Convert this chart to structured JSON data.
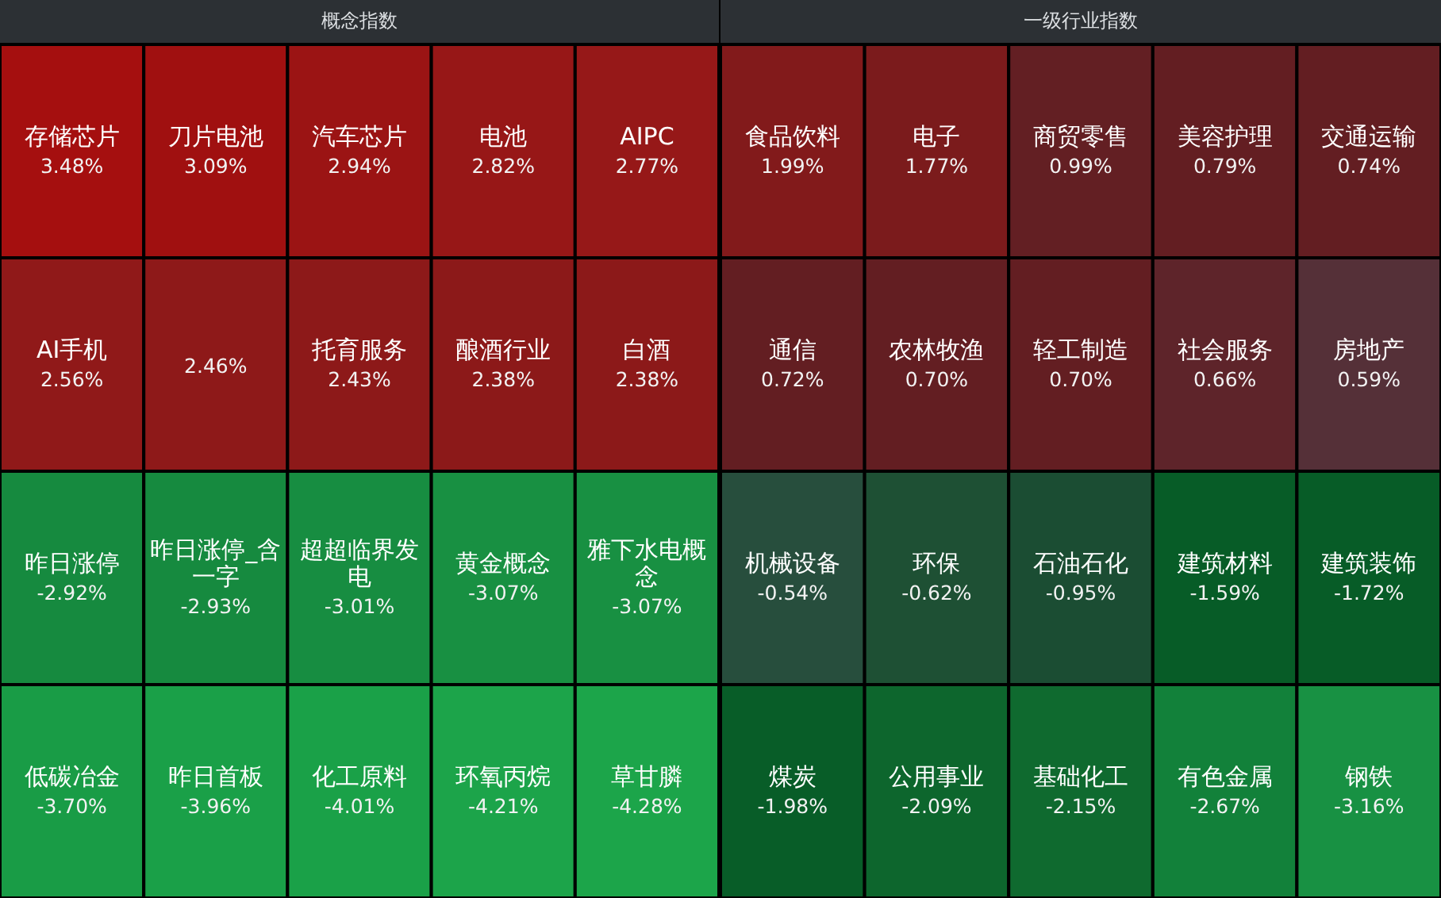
{
  "chart_data": [
    {
      "type": "other",
      "title": "概念指数",
      "categories": [
        "存储芯片",
        "刀片电池",
        "汽车芯片",
        "电池",
        "AIPC",
        "AI手机",
        null,
        "托育服务",
        "酿酒行业",
        "白酒",
        "昨日涨停",
        "昨日涨停_含一字",
        "超超临界发电",
        "黄金概念",
        "雅下水电概念",
        "低碳冶金",
        "昨日首板",
        "化工原料",
        "环氧丙烷",
        "草甘膦"
      ],
      "values": [
        3.48,
        3.09,
        2.94,
        2.82,
        2.77,
        2.56,
        2.46,
        2.43,
        2.38,
        2.38,
        -2.92,
        -2.93,
        -3.01,
        -3.07,
        -3.07,
        -3.7,
        -3.96,
        -4.01,
        -4.21,
        -4.28
      ],
      "value_labels": [
        "3.48%",
        "3.09%",
        "2.94%",
        "2.82%",
        "2.77%",
        "2.56%",
        "2.46%",
        "2.43%",
        "2.38%",
        "2.38%",
        "-2.92%",
        "-2.93%",
        "-3.01%",
        "-3.07%",
        "-3.07%",
        "-3.70%",
        "-3.96%",
        "-4.01%",
        "-4.21%",
        "-4.28%"
      ]
    },
    {
      "type": "other",
      "title": "一级行业指数",
      "categories": [
        "食品饮料",
        "电子",
        "商贸零售",
        "美容护理",
        "交通运输",
        "通信",
        "农林牧渔",
        "轻工制造",
        "社会服务",
        "房地产",
        "机械设备",
        "环保",
        "石油石化",
        "建筑材料",
        "建筑装饰",
        "煤炭",
        "公用事业",
        "基础化工",
        "有色金属",
        "钢铁"
      ],
      "values": [
        1.99,
        1.77,
        0.99,
        0.79,
        0.74,
        0.72,
        0.7,
        0.7,
        0.66,
        0.59,
        -0.54,
        -0.62,
        -0.95,
        -1.59,
        -1.72,
        -1.98,
        -2.09,
        -2.15,
        -2.67,
        -3.16
      ],
      "value_labels": [
        "1.99%",
        "1.77%",
        "0.99%",
        "0.79%",
        "0.74%",
        "0.72%",
        "0.70%",
        "0.70%",
        "0.66%",
        "0.59%",
        "-0.54%",
        "-0.62%",
        "-0.95%",
        "-1.59%",
        "-1.72%",
        "-1.98%",
        "-2.09%",
        "-2.15%",
        "-2.67%",
        "-3.16%"
      ]
    }
  ]
}
